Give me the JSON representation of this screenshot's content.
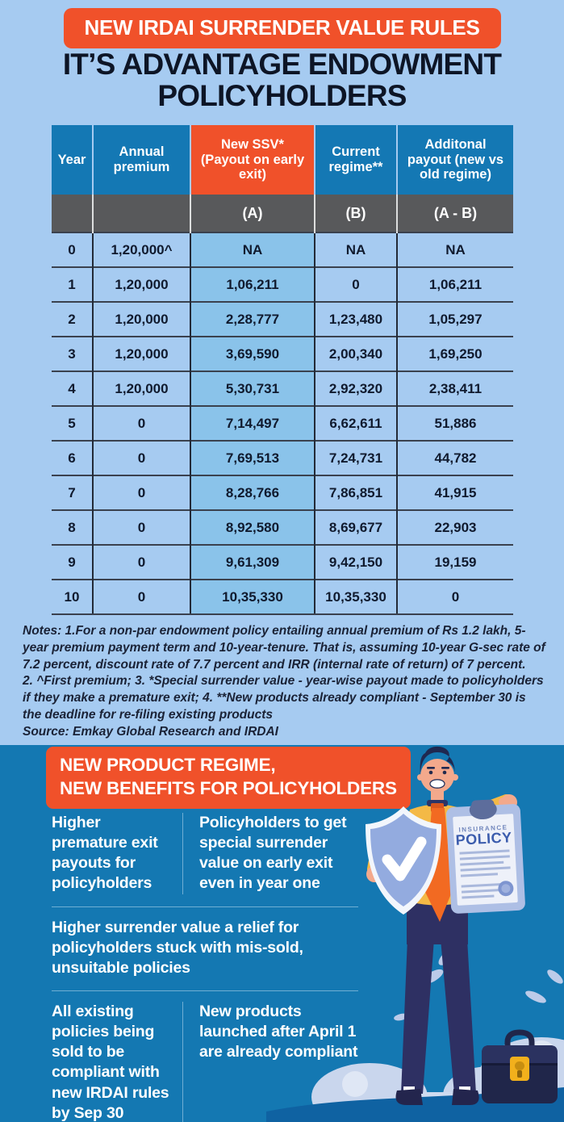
{
  "header": {
    "badge": "NEW IRDAI SURRENDER VALUE RULES",
    "title_line1": "IT’S ADVANTAGE ENDOWMENT",
    "title_line2": "POLICYHOLDERS"
  },
  "chart_data": {
    "type": "table",
    "title": "IT’S ADVANTAGE ENDOWMENT POLICYHOLDERS",
    "columns": [
      "Year",
      "Annual premium",
      "New SSV* (Payout on early exit)",
      "Current regime**",
      "Additonal payout (new vs old regime)"
    ],
    "sub_columns": [
      "",
      "",
      "(A)",
      "(B)",
      "(A - B)"
    ],
    "rows": [
      [
        "0",
        "1,20,000^",
        "NA",
        "NA",
        "NA"
      ],
      [
        "1",
        "1,20,000",
        "1,06,211",
        "0",
        "1,06,211"
      ],
      [
        "2",
        "1,20,000",
        "2,28,777",
        "1,23,480",
        "1,05,297"
      ],
      [
        "3",
        "1,20,000",
        "3,69,590",
        "2,00,340",
        "1,69,250"
      ],
      [
        "4",
        "1,20,000",
        "5,30,731",
        "2,92,320",
        "2,38,411"
      ],
      [
        "5",
        "0",
        "7,14,497",
        "6,62,611",
        "51,886"
      ],
      [
        "6",
        "0",
        "7,69,513",
        "7,24,731",
        "44,782"
      ],
      [
        "7",
        "0",
        "8,28,766",
        "7,86,851",
        "41,915"
      ],
      [
        "8",
        "0",
        "8,92,580",
        "8,69,677",
        "22,903"
      ],
      [
        "9",
        "0",
        "9,61,309",
        "9,42,150",
        "19,159"
      ],
      [
        "10",
        "0",
        "10,35,330",
        "10,35,330",
        "0"
      ]
    ],
    "highlight_column_index": 2
  },
  "notes": {
    "n1": "Notes: 1.For a non-par endowment policy entailing annual premium of Rs 1.2 lakh, 5-year premium payment term and 10-year-tenure. That is, assuming 10-year G-sec rate of 7.2 percent, discount rate of 7.7 percent and IRR (internal rate of return) of 7 percent.",
    "n2": "2. ^First premium; 3. *Special surrender value - year-wise payout made to policyholders if they make a premature exit; 4. **New products already compliant - September 30 is the deadline for re-filing existing products",
    "n3": "Source: Emkay Global Research and IRDAI"
  },
  "bottom": {
    "badge_line1": "NEW PRODUCT REGIME,",
    "badge_line2": "NEW BENEFITS FOR POLICYHOLDERS",
    "item1": "Higher premature exit payouts for policyholders",
    "item2": "Policyholders to get special surrender value on early exit even in year one",
    "item3": "Higher surrender value a relief for policyholders stuck with mis-sold, unsuitable policies",
    "item4": "All existing policies being sold to be compliant with new IRDAI rules by Sep 30",
    "item5": "New products launched after April 1 are already compliant"
  },
  "illustration": {
    "document_label_small": "INSURANCE",
    "document_label_big": "POLICY"
  },
  "colors": {
    "accent_orange": "#F0512A",
    "header_blue": "#1478B4",
    "page_bg": "#A6CBF1",
    "highlight_cell": "#8AC3EA",
    "bottom_bg": "#1478B2",
    "subheader_gray": "#58595B"
  }
}
